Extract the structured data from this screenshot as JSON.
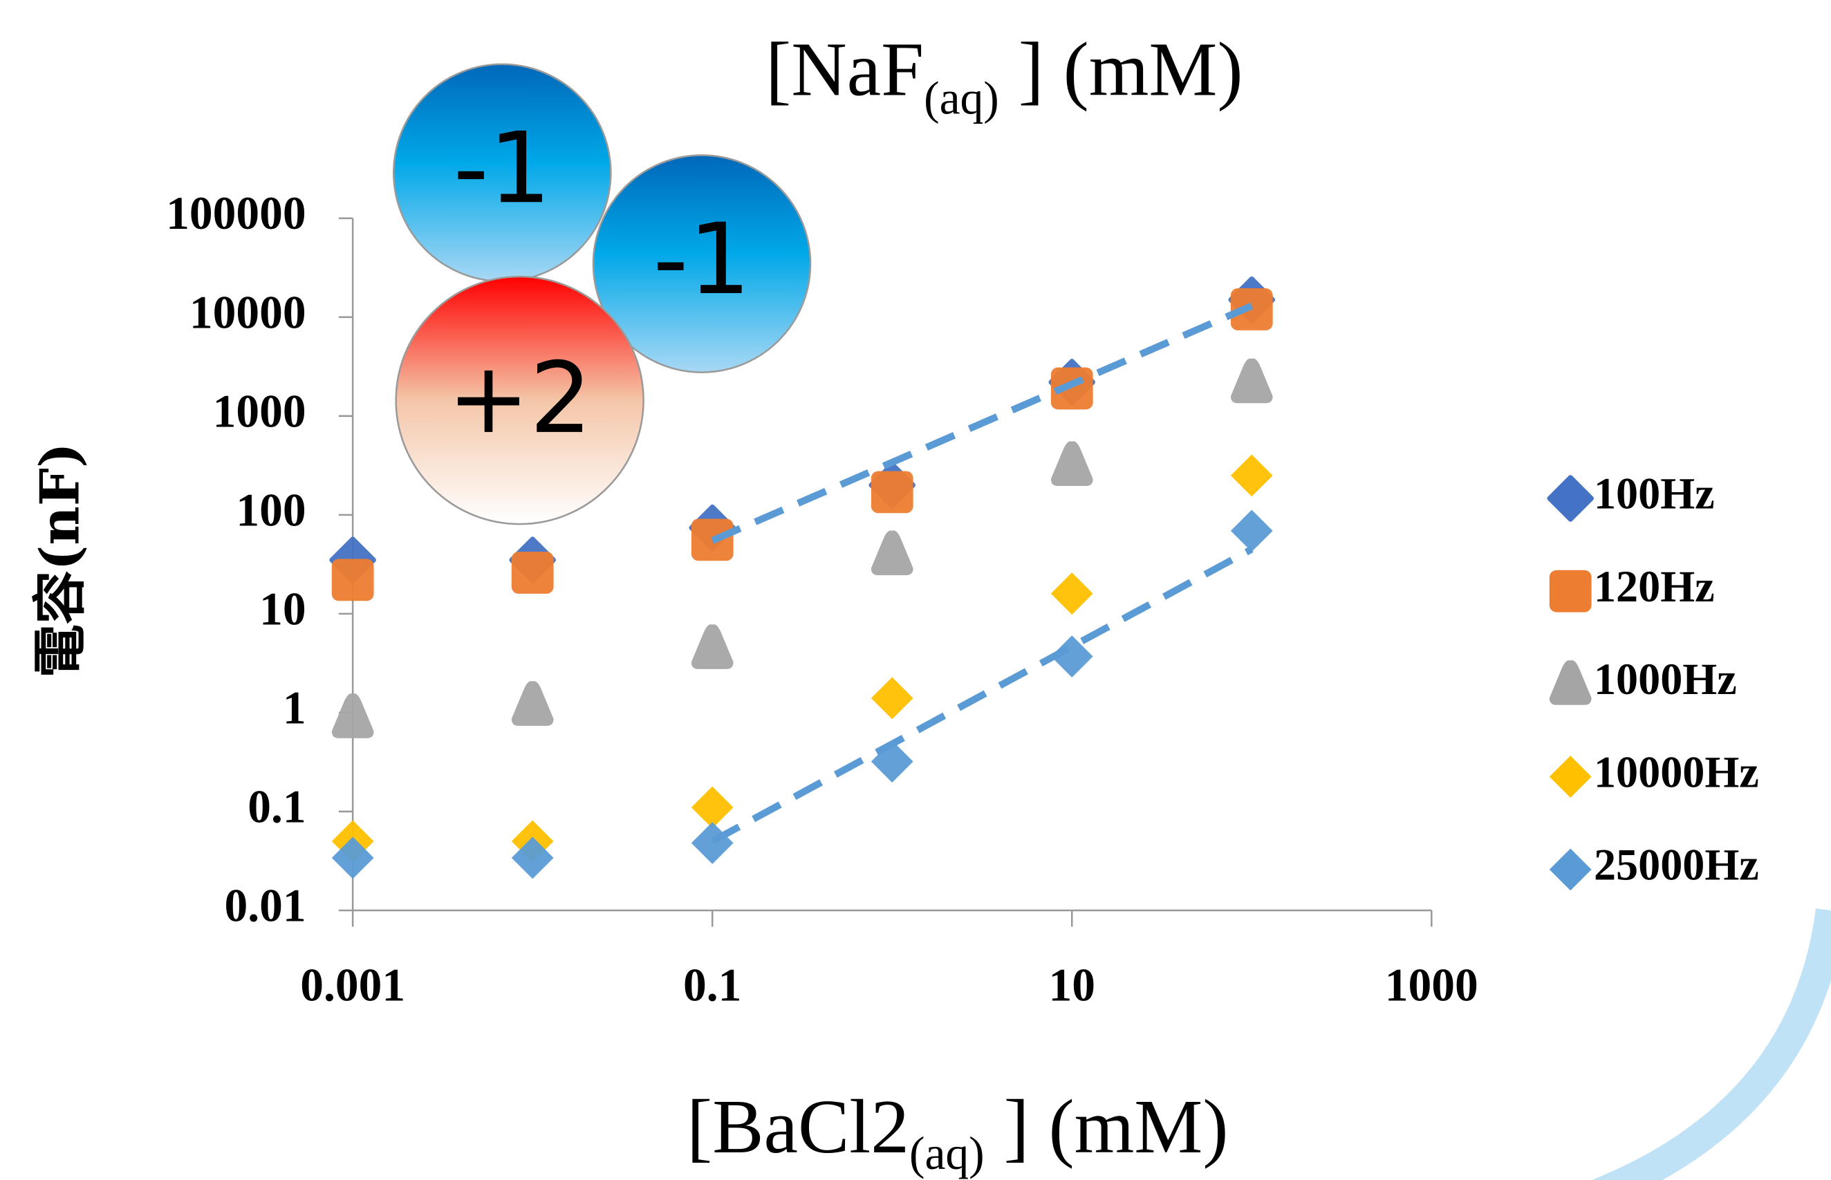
{
  "chart_data": {
    "type": "scatter",
    "title": [
      "[NaF",
      "(aq)",
      " ] (mM)"
    ],
    "x_label": [
      "[BaCl2",
      "(aq)",
      " ] (mM)"
    ],
    "y_label": "電容(nF)",
    "annotations": [
      "-1",
      "-1",
      "+2"
    ],
    "x": [
      0.001,
      0.01,
      0.1,
      1,
      10,
      100
    ],
    "xlim": [
      0.001,
      1000
    ],
    "xticks": [
      0.001,
      0.1,
      10,
      1000
    ],
    "ylim": [
      0.01,
      100000
    ],
    "yticks": [
      0.01,
      0.1,
      1,
      10,
      100,
      1000,
      10000,
      100000
    ],
    "log_x": true,
    "log_y": true,
    "grid": false,
    "legend": "right",
    "series": [
      {
        "name": "100Hz",
        "color": "#4472c4",
        "marker": "round-diamond",
        "values": [
          35,
          35,
          74,
          200,
          2200,
          15000
        ]
      },
      {
        "name": "120Hz",
        "color": "#ed7d31",
        "marker": "square",
        "values": [
          22,
          26,
          56,
          170,
          1900,
          12000
        ]
      },
      {
        "name": "1000Hz",
        "color": "#a5a5a5",
        "marker": "triangle",
        "values": [
          0.9,
          1.2,
          4.5,
          40,
          320,
          2200
        ]
      },
      {
        "name": "10000Hz",
        "color": "#ffc000",
        "marker": "diamond",
        "values": [
          0.05,
          0.05,
          0.11,
          1.4,
          16,
          250
        ]
      },
      {
        "name": "25000Hz",
        "color": "#5b9bd5",
        "marker": "diamond",
        "values": [
          0.034,
          0.034,
          0.048,
          0.32,
          3.7,
          69
        ]
      }
    ],
    "trendlines": [
      {
        "color": "#5b9bd5",
        "x": [
          0.1,
          100
        ],
        "values": [
          55,
          13000
        ]
      },
      {
        "color": "#5b9bd5",
        "x": [
          0.1,
          100
        ],
        "values": [
          0.05,
          45
        ]
      }
    ]
  }
}
